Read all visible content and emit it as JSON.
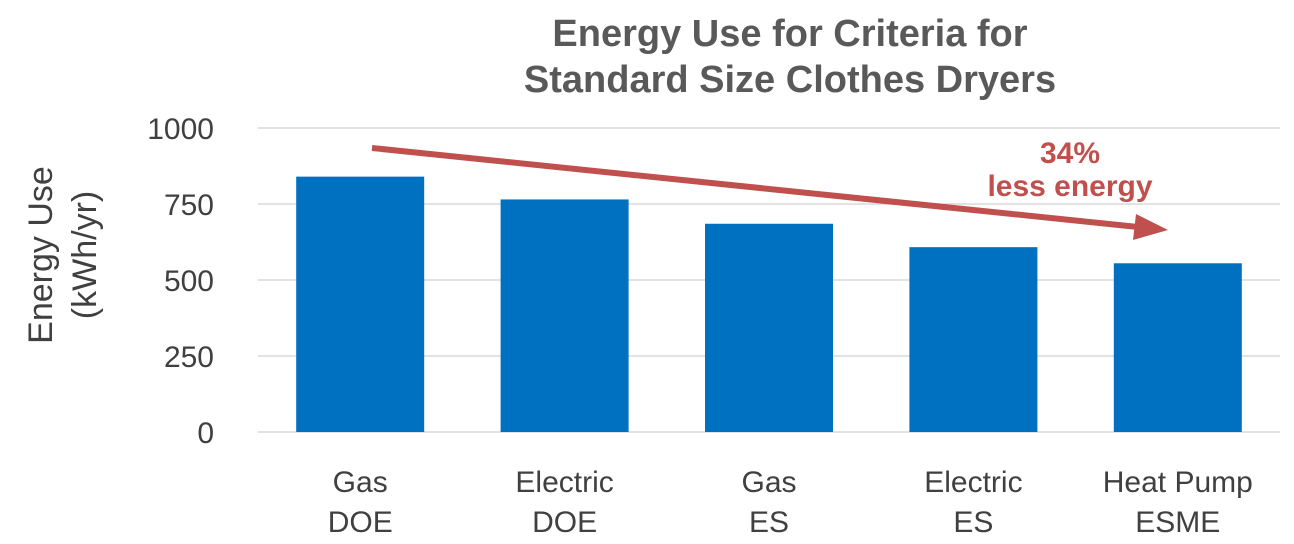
{
  "chart_data": {
    "type": "bar",
    "title": [
      "Energy Use for Criteria for",
      "Standard Size Clothes Dryers"
    ],
    "ylabel": [
      "Energy Use",
      "(kWh/yr)"
    ],
    "xlabel": "",
    "ylim": [
      0,
      1000
    ],
    "yticks": [
      "0",
      "250",
      "500",
      "750",
      "1000"
    ],
    "categories": [
      [
        "Gas",
        "DOE"
      ],
      [
        "Electric",
        "DOE"
      ],
      [
        "Gas",
        "ES"
      ],
      [
        "Electric",
        "ES"
      ],
      [
        "Heat Pump",
        "ESME"
      ]
    ],
    "values": [
      840,
      765,
      685,
      608,
      555
    ],
    "grid": true,
    "bar_color": "#0070C0",
    "annotation": {
      "lines": [
        "34%",
        "less energy"
      ],
      "color": "#C0504D",
      "arrow": "downward trend from first bar to last bar"
    }
  }
}
